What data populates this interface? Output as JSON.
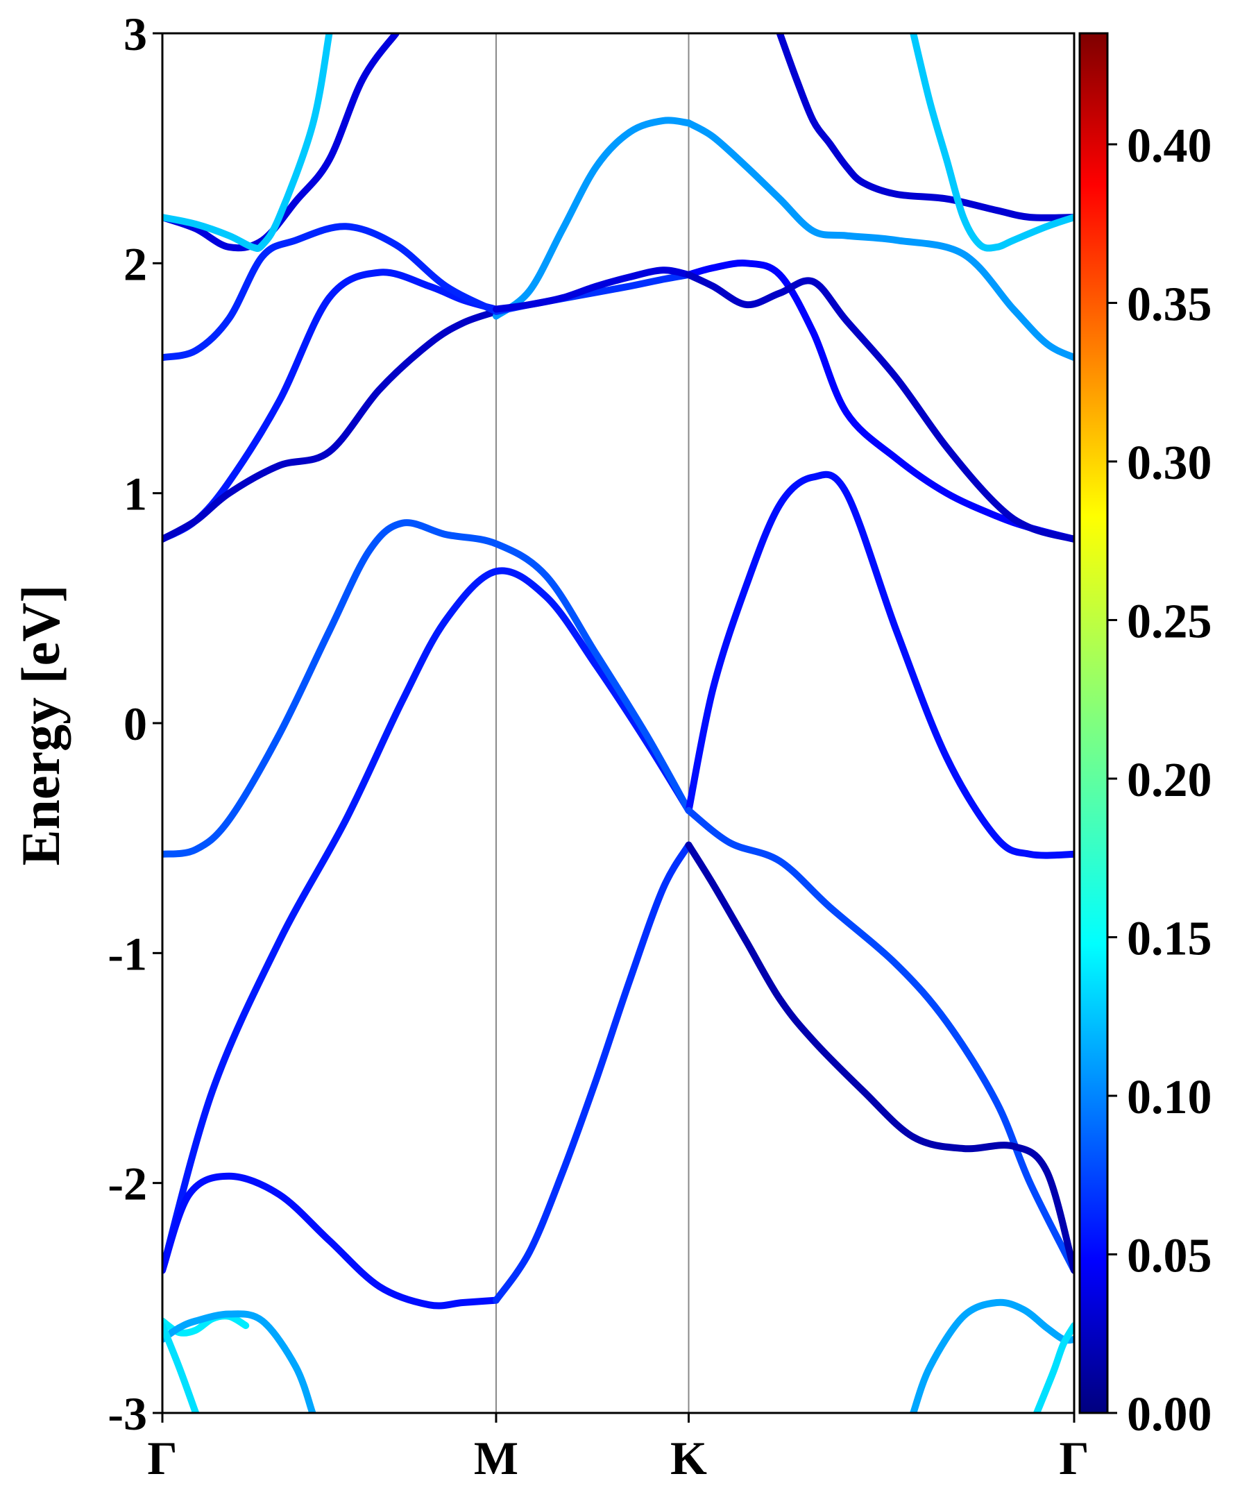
{
  "chart_data": {
    "type": "line",
    "title": "",
    "xlabel": "",
    "ylabel": "Energy [eV]",
    "ylim": [
      -3,
      3
    ],
    "y_ticks": [
      "3",
      "2",
      "1",
      "0",
      "-1",
      "-2",
      "-3"
    ],
    "y_tick_values": [
      3,
      2,
      1,
      0,
      -1,
      -2,
      -3
    ],
    "x_ticks": [
      {
        "label": "Γ",
        "x": 0.0
      },
      {
        "label": "M",
        "x": 1.0
      },
      {
        "label": "K",
        "x": 1.577
      },
      {
        "label": "Γ",
        "x": 2.732
      }
    ],
    "k_path_vertical_lines": [
      1.0,
      1.577
    ],
    "colorbar": {
      "colormap": "jet",
      "range": [
        0.0,
        0.435
      ],
      "ticks": [
        "0.00",
        "0.05",
        "0.10",
        "0.15",
        "0.20",
        "0.25",
        "0.30",
        "0.35",
        "0.40"
      ],
      "tick_values": [
        0.0,
        0.05,
        0.1,
        0.15,
        0.2,
        0.25,
        0.3,
        0.35,
        0.4
      ]
    },
    "grid": false,
    "series": [
      {
        "weight": 0.065,
        "x": [
          0,
          0.15,
          0.35,
          0.55,
          0.72,
          0.85,
          1.0,
          1.15,
          1.3,
          1.45,
          1.577
        ],
        "y": [
          -2.38,
          -1.6,
          -0.95,
          -0.42,
          0.1,
          0.45,
          0.66,
          0.55,
          0.25,
          -0.08,
          -0.38
        ]
      },
      {
        "weight": 0.09,
        "x": [
          0,
          0.1,
          0.2,
          0.35,
          0.5,
          0.62,
          0.72,
          0.85,
          1.0,
          1.15,
          1.3,
          1.45,
          1.577
        ],
        "y": [
          -0.57,
          -0.55,
          -0.42,
          -0.05,
          0.4,
          0.75,
          0.87,
          0.82,
          0.78,
          0.64,
          0.3,
          -0.05,
          -0.38
        ]
      },
      {
        "weight": 0.06,
        "x": [
          1.577,
          1.65,
          1.75,
          1.85,
          1.95,
          2.05,
          2.2,
          2.35,
          2.5,
          2.6,
          2.732
        ],
        "y": [
          -0.38,
          0.15,
          0.6,
          0.95,
          1.07,
          1.0,
          0.4,
          -0.15,
          -0.5,
          -0.57,
          -0.57
        ]
      },
      {
        "weight": 0.085,
        "x": [
          1.577,
          1.7,
          1.85,
          2.0,
          2.2,
          2.35,
          2.5,
          2.6,
          2.732
        ],
        "y": [
          -0.38,
          -0.52,
          -0.6,
          -0.8,
          -1.05,
          -1.3,
          -1.65,
          -2.0,
          -2.38
        ]
      },
      {
        "weight": 0.06,
        "x": [
          0,
          0.08,
          0.2,
          0.35,
          0.5,
          0.65,
          0.8,
          0.9,
          1.0
        ],
        "y": [
          -2.38,
          -2.05,
          -1.97,
          -2.05,
          -2.25,
          -2.45,
          -2.53,
          -2.52,
          -2.51
        ]
      },
      {
        "weight": 0.075,
        "x": [
          1.0,
          1.1,
          1.2,
          1.3,
          1.4,
          1.5,
          1.577
        ],
        "y": [
          -2.51,
          -2.3,
          -1.95,
          -1.55,
          -1.12,
          -0.72,
          -0.53
        ]
      },
      {
        "weight": 0.02,
        "x": [
          1.577,
          1.65,
          1.75,
          1.85,
          1.95,
          2.1,
          2.25,
          2.4,
          2.55,
          2.65,
          2.732
        ],
        "y": [
          -0.53,
          -0.7,
          -0.95,
          -1.2,
          -1.38,
          -1.6,
          -1.8,
          -1.85,
          -1.84,
          -1.95,
          -2.38
        ]
      },
      {
        "weight": 0.065,
        "x": [
          0,
          0.1,
          0.2,
          0.35,
          0.5,
          0.65,
          0.8,
          0.9,
          1.0
        ],
        "y": [
          0.8,
          0.88,
          1.05,
          1.4,
          1.85,
          1.96,
          1.9,
          1.84,
          1.8
        ]
      },
      {
        "weight": 0.03,
        "x": [
          0,
          0.1,
          0.2,
          0.35,
          0.5,
          0.65,
          0.8,
          0.9,
          1.0
        ],
        "y": [
          0.8,
          0.88,
          1.0,
          1.12,
          1.18,
          1.45,
          1.65,
          1.74,
          1.79
        ]
      },
      {
        "weight": 0.07,
        "x": [
          0,
          0.1,
          0.2,
          0.3,
          0.4,
          0.55,
          0.7,
          0.85,
          1.0
        ],
        "y": [
          1.59,
          1.62,
          1.76,
          2.03,
          2.1,
          2.16,
          2.08,
          1.9,
          1.79
        ]
      },
      {
        "weight": 0.12,
        "x": [
          1.0,
          1.1,
          1.2,
          1.3,
          1.4,
          1.5,
          1.577
        ],
        "y": [
          1.77,
          1.88,
          2.15,
          2.42,
          2.57,
          2.62,
          2.61
        ]
      },
      {
        "weight": 0.04,
        "x": [
          0,
          0.1,
          0.2,
          0.3,
          0.4,
          0.5,
          0.6,
          0.7
        ],
        "y": [
          2.2,
          2.15,
          2.07,
          2.1,
          2.27,
          2.45,
          2.8,
          3.0
        ]
      },
      {
        "weight": 0.14,
        "x": [
          0,
          0.1,
          0.2,
          0.27,
          0.3,
          0.35,
          0.45,
          0.5
        ],
        "y": [
          2.2,
          2.17,
          2.12,
          2.07,
          2.08,
          2.2,
          2.6,
          3.0
        ]
      },
      {
        "weight": 0.075,
        "x": [
          1.0,
          1.1,
          1.25,
          1.4,
          1.5,
          1.577
        ],
        "y": [
          1.79,
          1.82,
          1.86,
          1.9,
          1.93,
          1.95
        ]
      },
      {
        "weight": 0.04,
        "x": [
          1.0,
          1.1,
          1.2,
          1.3,
          1.4,
          1.5,
          1.577
        ],
        "y": [
          1.8,
          1.82,
          1.85,
          1.9,
          1.94,
          1.97,
          1.95
        ]
      },
      {
        "weight": 0.055,
        "x": [
          1.577,
          1.65,
          1.75,
          1.85,
          1.95,
          2.05,
          2.2,
          2.35,
          2.5,
          2.6,
          2.732
        ],
        "y": [
          1.95,
          1.98,
          2.0,
          1.95,
          1.7,
          1.35,
          1.15,
          1.0,
          0.9,
          0.85,
          0.8
        ]
      },
      {
        "weight": 0.03,
        "x": [
          1.577,
          1.65,
          1.75,
          1.85,
          1.95,
          2.05,
          2.2,
          2.35,
          2.5,
          2.6,
          2.732
        ],
        "y": [
          1.95,
          1.9,
          1.82,
          1.87,
          1.92,
          1.75,
          1.5,
          1.2,
          0.95,
          0.85,
          0.8
        ]
      },
      {
        "weight": 0.12,
        "x": [
          1.577,
          1.65,
          1.75,
          1.85,
          1.95,
          2.05,
          2.2,
          2.4,
          2.55,
          2.65,
          2.732
        ],
        "y": [
          2.61,
          2.55,
          2.42,
          2.28,
          2.14,
          2.12,
          2.1,
          2.04,
          1.8,
          1.65,
          1.59
        ]
      },
      {
        "weight": 0.035,
        "x": [
          1.85,
          1.9,
          1.95,
          2.0,
          2.05,
          2.1,
          2.2,
          2.35,
          2.5,
          2.6,
          2.732
        ],
        "y": [
          3.0,
          2.8,
          2.62,
          2.52,
          2.42,
          2.35,
          2.3,
          2.28,
          2.23,
          2.2,
          2.2
        ]
      },
      {
        "weight": 0.14,
        "x": [
          2.25,
          2.3,
          2.35,
          2.4,
          2.45,
          2.5,
          2.55,
          2.65,
          2.732
        ],
        "y": [
          3.0,
          2.7,
          2.45,
          2.2,
          2.08,
          2.07,
          2.1,
          2.16,
          2.2
        ]
      },
      {
        "weight": 0.155,
        "x": [
          0,
          0.05,
          0.1,
          0.15,
          0.2,
          0.25
        ],
        "y": [
          -2.6,
          -2.65,
          -2.64,
          -2.59,
          -2.58,
          -2.62
        ]
      },
      {
        "weight": 0.125,
        "x": [
          0,
          0.05,
          0.1,
          0.2,
          0.3,
          0.4,
          0.45
        ],
        "y": [
          -2.68,
          -2.63,
          -2.6,
          -2.57,
          -2.6,
          -2.8,
          -3.0
        ]
      },
      {
        "weight": 0.15,
        "x": [
          0,
          0.05,
          0.1
        ],
        "y": [
          -2.62,
          -2.8,
          -3.0
        ]
      },
      {
        "weight": 0.125,
        "x": [
          2.25,
          2.3,
          2.4,
          2.5,
          2.58,
          2.65,
          2.7,
          2.732
        ],
        "y": [
          -3.0,
          -2.8,
          -2.58,
          -2.52,
          -2.55,
          -2.63,
          -2.68,
          -2.68
        ]
      },
      {
        "weight": 0.15,
        "x": [
          2.62,
          2.67,
          2.7,
          2.732
        ],
        "y": [
          -3.0,
          -2.82,
          -2.7,
          -2.62
        ]
      }
    ]
  }
}
